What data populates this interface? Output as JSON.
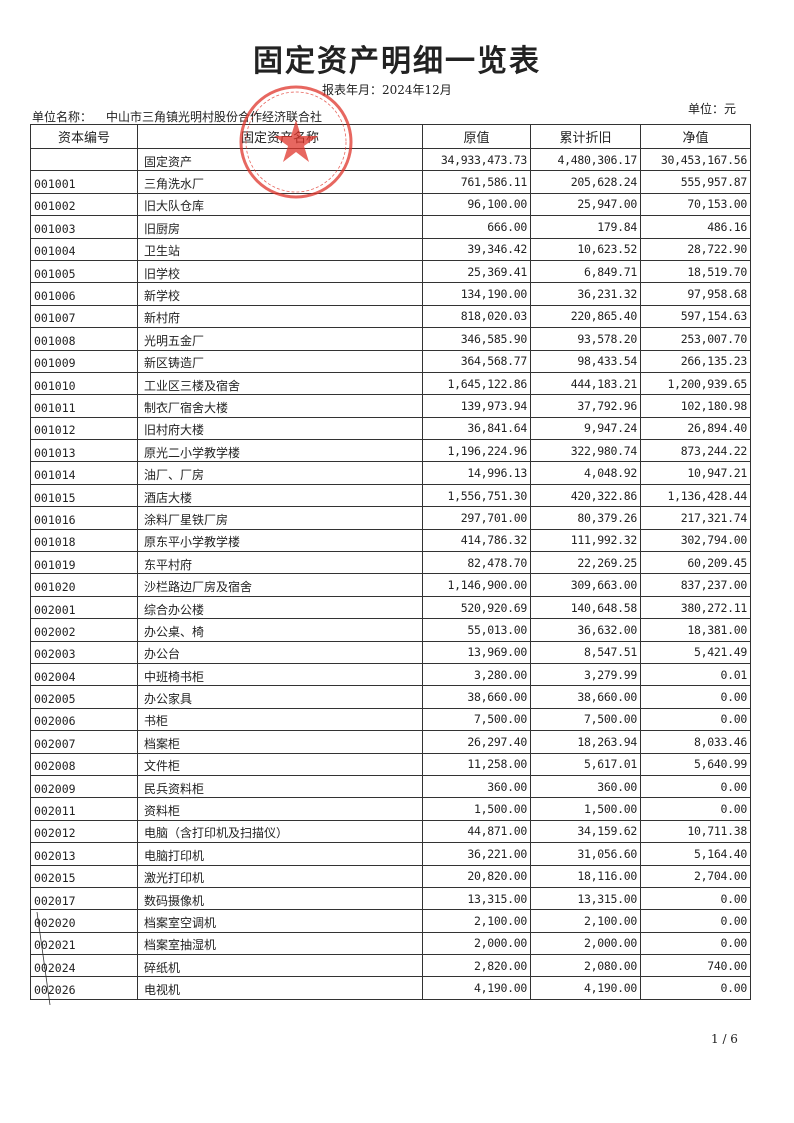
{
  "title": "固定资产明细一览表",
  "period_label": "报表年月：2024年12月",
  "org_label": "单位名称：",
  "org_name": "中山市三角镇光明村股份合作经济联合社",
  "unit_label": "单位：元",
  "stamp_color": "#e0352b",
  "headers": [
    "资本编号",
    "固定资产名称",
    "原值",
    "累计折旧",
    "净值"
  ],
  "total_row": {
    "code": "",
    "name": "固定资产",
    "original": "34,933,473.73",
    "depreciation": "4,480,306.17",
    "net": "30,453,167.56"
  },
  "rows": [
    {
      "code": "001001",
      "name": "三角洗水厂",
      "original": "761,586.11",
      "depreciation": "205,628.24",
      "net": "555,957.87"
    },
    {
      "code": "001002",
      "name": "旧大队仓库",
      "original": "96,100.00",
      "depreciation": "25,947.00",
      "net": "70,153.00"
    },
    {
      "code": "001003",
      "name": "旧厨房",
      "original": "666.00",
      "depreciation": "179.84",
      "net": "486.16"
    },
    {
      "code": "001004",
      "name": "卫生站",
      "original": "39,346.42",
      "depreciation": "10,623.52",
      "net": "28,722.90"
    },
    {
      "code": "001005",
      "name": "旧学校",
      "original": "25,369.41",
      "depreciation": "6,849.71",
      "net": "18,519.70"
    },
    {
      "code": "001006",
      "name": "新学校",
      "original": "134,190.00",
      "depreciation": "36,231.32",
      "net": "97,958.68"
    },
    {
      "code": "001007",
      "name": "新村府",
      "original": "818,020.03",
      "depreciation": "220,865.40",
      "net": "597,154.63"
    },
    {
      "code": "001008",
      "name": "光明五金厂",
      "original": "346,585.90",
      "depreciation": "93,578.20",
      "net": "253,007.70"
    },
    {
      "code": "001009",
      "name": "新区铸造厂",
      "original": "364,568.77",
      "depreciation": "98,433.54",
      "net": "266,135.23"
    },
    {
      "code": "001010",
      "name": "工业区三楼及宿舍",
      "original": "1,645,122.86",
      "depreciation": "444,183.21",
      "net": "1,200,939.65"
    },
    {
      "code": "001011",
      "name": "制衣厂宿舍大楼",
      "original": "139,973.94",
      "depreciation": "37,792.96",
      "net": "102,180.98"
    },
    {
      "code": "001012",
      "name": "旧村府大楼",
      "original": "36,841.64",
      "depreciation": "9,947.24",
      "net": "26,894.40"
    },
    {
      "code": "001013",
      "name": "原光二小学教学楼",
      "original": "1,196,224.96",
      "depreciation": "322,980.74",
      "net": "873,244.22"
    },
    {
      "code": "001014",
      "name": "油厂、厂房",
      "original": "14,996.13",
      "depreciation": "4,048.92",
      "net": "10,947.21"
    },
    {
      "code": "001015",
      "name": "酒店大楼",
      "original": "1,556,751.30",
      "depreciation": "420,322.86",
      "net": "1,136,428.44"
    },
    {
      "code": "001016",
      "name": "涂料厂星铁厂房",
      "original": "297,701.00",
      "depreciation": "80,379.26",
      "net": "217,321.74"
    },
    {
      "code": "001018",
      "name": "原东平小学教学楼",
      "original": "414,786.32",
      "depreciation": "111,992.32",
      "net": "302,794.00"
    },
    {
      "code": "001019",
      "name": "东平村府",
      "original": "82,478.70",
      "depreciation": "22,269.25",
      "net": "60,209.45"
    },
    {
      "code": "001020",
      "name": "沙栏路边厂房及宿舍",
      "original": "1,146,900.00",
      "depreciation": "309,663.00",
      "net": "837,237.00"
    },
    {
      "code": "002001",
      "name": "综合办公楼",
      "original": "520,920.69",
      "depreciation": "140,648.58",
      "net": "380,272.11"
    },
    {
      "code": "002002",
      "name": "办公桌、椅",
      "original": "55,013.00",
      "depreciation": "36,632.00",
      "net": "18,381.00"
    },
    {
      "code": "002003",
      "name": "办公台",
      "original": "13,969.00",
      "depreciation": "8,547.51",
      "net": "5,421.49"
    },
    {
      "code": "002004",
      "name": "中班椅书柜",
      "original": "3,280.00",
      "depreciation": "3,279.99",
      "net": "0.01"
    },
    {
      "code": "002005",
      "name": "办公家具",
      "original": "38,660.00",
      "depreciation": "38,660.00",
      "net": "0.00"
    },
    {
      "code": "002006",
      "name": "书柜",
      "original": "7,500.00",
      "depreciation": "7,500.00",
      "net": "0.00"
    },
    {
      "code": "002007",
      "name": "档案柜",
      "original": "26,297.40",
      "depreciation": "18,263.94",
      "net": "8,033.46"
    },
    {
      "code": "002008",
      "name": "文件柜",
      "original": "11,258.00",
      "depreciation": "5,617.01",
      "net": "5,640.99"
    },
    {
      "code": "002009",
      "name": "民兵资料柜",
      "original": "360.00",
      "depreciation": "360.00",
      "net": "0.00"
    },
    {
      "code": "002011",
      "name": "资料柜",
      "original": "1,500.00",
      "depreciation": "1,500.00",
      "net": "0.00"
    },
    {
      "code": "002012",
      "name": "电脑（含打印机及扫描仪）",
      "original": "44,871.00",
      "depreciation": "34,159.62",
      "net": "10,711.38"
    },
    {
      "code": "002013",
      "name": "电脑打印机",
      "original": "36,221.00",
      "depreciation": "31,056.60",
      "net": "5,164.40"
    },
    {
      "code": "002015",
      "name": "激光打印机",
      "original": "20,820.00",
      "depreciation": "18,116.00",
      "net": "2,704.00"
    },
    {
      "code": "002017",
      "name": "数码摄像机",
      "original": "13,315.00",
      "depreciation": "13,315.00",
      "net": "0.00"
    },
    {
      "code": "002020",
      "name": "档案室空调机",
      "original": "2,100.00",
      "depreciation": "2,100.00",
      "net": "0.00"
    },
    {
      "code": "002021",
      "name": "档案室抽湿机",
      "original": "2,000.00",
      "depreciation": "2,000.00",
      "net": "0.00"
    },
    {
      "code": "002024",
      "name": "碎纸机",
      "original": "2,820.00",
      "depreciation": "2,080.00",
      "net": "740.00"
    },
    {
      "code": "002026",
      "name": "电视机",
      "original": "4,190.00",
      "depreciation": "4,190.00",
      "net": "0.00"
    }
  ],
  "page_number": "1 / 6"
}
